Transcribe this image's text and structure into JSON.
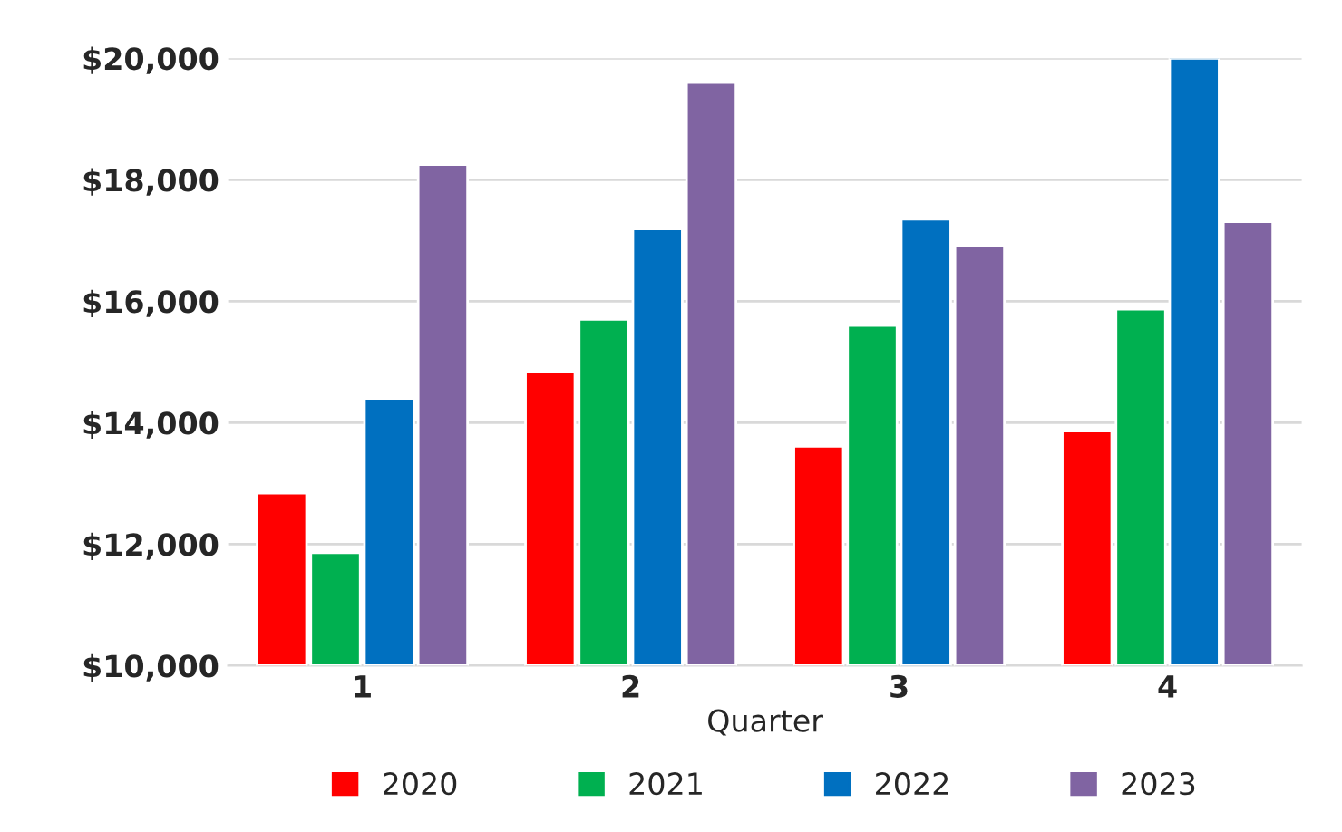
{
  "chart_data": {
    "type": "bar",
    "xlabel": "Quarter",
    "categories": [
      "1",
      "2",
      "3",
      "4"
    ],
    "series": [
      {
        "name": "2020",
        "color": "#ff0000",
        "values": [
          12840,
          14830,
          13610,
          13860
        ]
      },
      {
        "name": "2021",
        "color": "#00b050",
        "values": [
          11860,
          15700,
          15600,
          15870
        ]
      },
      {
        "name": "2022",
        "color": "#0070c0",
        "values": [
          14400,
          17190,
          17350,
          20000
        ]
      },
      {
        "name": "2023",
        "color": "#8064a2",
        "values": [
          18250,
          19600,
          16920,
          17310
        ]
      }
    ],
    "ylim": [
      10000,
      20000
    ],
    "yticks": [
      {
        "value": 10000,
        "label": "$10,000"
      },
      {
        "value": 12000,
        "label": "$12,000"
      },
      {
        "value": 14000,
        "label": "$14,000"
      },
      {
        "value": 16000,
        "label": "$16,000"
      },
      {
        "value": 18000,
        "label": "$18,000"
      },
      {
        "value": 20000,
        "label": "$20,000"
      }
    ],
    "grid": "y",
    "legend": "bottom"
  }
}
